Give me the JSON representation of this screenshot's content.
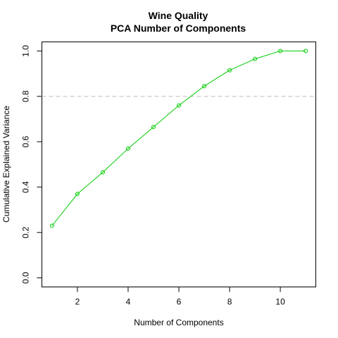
{
  "chart_data": {
    "type": "line",
    "title": "Wine Quality",
    "subtitle": "PCA Number of Components",
    "xlabel": "Number of Components",
    "ylabel": "Cumulative Explained Variance",
    "xlim": [
      0.6,
      11.4
    ],
    "ylim": [
      -0.04,
      1.04
    ],
    "xticks": [
      2,
      4,
      6,
      8,
      10
    ],
    "yticks": [
      0.0,
      0.2,
      0.4,
      0.6,
      0.8,
      1.0
    ],
    "ytick_labels": [
      "0.0",
      "0.2",
      "0.4",
      "0.6",
      "0.8",
      "1.0"
    ],
    "grid": false,
    "legend": "none",
    "reference_line": {
      "y": 0.8,
      "color": "#bebebe",
      "style": "dashed"
    },
    "series": [
      {
        "color": "#00cc00",
        "marker": "open-circle",
        "x": [
          1,
          2,
          3,
          4,
          5,
          6,
          7,
          8,
          9,
          10,
          11
        ],
        "y": [
          0.23,
          0.37,
          0.465,
          0.57,
          0.665,
          0.76,
          0.845,
          0.915,
          0.965,
          1.0,
          1.0
        ]
      }
    ]
  }
}
